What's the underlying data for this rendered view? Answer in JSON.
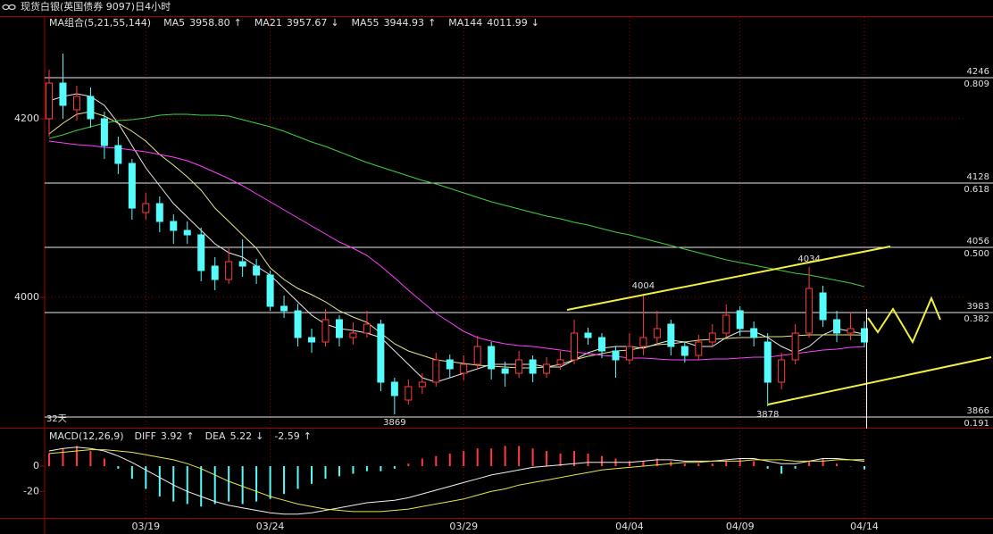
{
  "chart_data": [
    {
      "type": "candlestick",
      "title": "现货白银(英国债券 9097)日4小时",
      "indicator_label": "MA组合(5,21,55,144)",
      "period_label": "32天",
      "categories": [
        null,
        null,
        null,
        null,
        null,
        null,
        null,
        "03/19",
        null,
        null,
        null,
        null,
        null,
        null,
        null,
        null,
        "03/24",
        null,
        null,
        null,
        null,
        null,
        null,
        null,
        null,
        null,
        null,
        null,
        null,
        null,
        "03/29",
        null,
        null,
        null,
        null,
        null,
        null,
        null,
        null,
        null,
        null,
        null,
        "04/04",
        null,
        null,
        null,
        null,
        null,
        null,
        null,
        "04/09",
        null,
        null,
        null,
        null,
        null,
        null,
        null,
        null,
        "04/14"
      ],
      "open": [
        4200,
        4240,
        4210,
        4225,
        4200,
        4170,
        4150,
        4095,
        4105,
        4085,
        4075,
        4070,
        4035,
        4020,
        4040,
        4035,
        4025,
        3990,
        3985,
        3955,
        3950,
        3975,
        3955,
        3960,
        3970,
        3905,
        3885,
        3900,
        3905,
        3930,
        3915,
        3925,
        3945,
        3920,
        3915,
        3930,
        3915,
        3925,
        3930,
        3960,
        3955,
        3940,
        3930,
        3945,
        3955,
        3970,
        3945,
        3935,
        3950,
        3960,
        3985,
        3965,
        3950,
        3905,
        3930,
        3960,
        4005,
        3975,
        3960,
        3965
      ],
      "high": [
        4255,
        4273,
        4237,
        4235,
        4208,
        4180,
        4155,
        4117,
        4113,
        4093,
        4085,
        4078,
        4045,
        4055,
        4065,
        4043,
        4030,
        4002,
        3993,
        3965,
        3987,
        3980,
        3972,
        3985,
        3975,
        3910,
        3908,
        3915,
        3938,
        3936,
        3935,
        3957,
        3950,
        3928,
        3940,
        3935,
        3933,
        3940,
        3975,
        3966,
        3960,
        3945,
        3960,
        4004,
        3985,
        3975,
        3951,
        3958,
        3970,
        3992,
        3990,
        3973,
        3960,
        3938,
        3970,
        4034,
        4013,
        3985,
        3983,
        3973
      ],
      "low": [
        4180,
        4200,
        4198,
        4190,
        4155,
        4138,
        4087,
        4087,
        4073,
        4060,
        4060,
        4018,
        4008,
        4015,
        4023,
        4015,
        3985,
        3977,
        3945,
        3938,
        3945,
        3945,
        3947,
        3955,
        3895,
        3869,
        3880,
        3892,
        3900,
        3910,
        3907,
        3920,
        3908,
        3900,
        3910,
        3905,
        3910,
        3919,
        3925,
        3947,
        3932,
        3910,
        3925,
        3935,
        3947,
        3935,
        3927,
        3930,
        3945,
        3955,
        3957,
        3945,
        3878,
        3897,
        3925,
        3955,
        3967,
        3950,
        3952,
        3944
      ],
      "close": [
        4240,
        4215,
        4225,
        4200,
        4170,
        4150,
        4100,
        4105,
        4085,
        4075,
        4070,
        4030,
        4020,
        4040,
        4035,
        4025,
        3990,
        3985,
        3955,
        3950,
        3975,
        3955,
        3960,
        3970,
        3905,
        3890,
        3900,
        3905,
        3930,
        3920,
        3925,
        3945,
        3920,
        3915,
        3930,
        3915,
        3925,
        3930,
        3960,
        3955,
        3940,
        3930,
        3945,
        3955,
        3965,
        3945,
        3935,
        3950,
        3960,
        3980,
        3965,
        3955,
        3905,
        3930,
        3960,
        4010,
        3975,
        3960,
        3965,
        3950
      ],
      "up_color": "#ff3c3c",
      "down_color": "#54fcfc",
      "series": [
        {
          "name": "MA5",
          "color": "#e8e8e8",
          "last_label": "3958.80",
          "trend": "↑",
          "values": [
            4220,
            4225,
            4228,
            4225,
            4215,
            4195,
            4170,
            4145,
            4125,
            4105,
            4090,
            4075,
            4060,
            4050,
            4045,
            4035,
            4025,
            4010,
            3995,
            3980,
            3970,
            3965,
            3963,
            3960,
            3955,
            3940,
            3925,
            3910,
            3905,
            3910,
            3915,
            3920,
            3925,
            3925,
            3925,
            3925,
            3922,
            3922,
            3930,
            3938,
            3943,
            3945,
            3945,
            3943,
            3948,
            3952,
            3950,
            3945,
            3945,
            3955,
            3962,
            3962,
            3955,
            3945,
            3938,
            3945,
            3958,
            3965,
            3962,
            3958.8
          ]
        },
        {
          "name": "MA21",
          "color": "#e6e68c",
          "last_label": "3957.67",
          "trend": "↓",
          "values": [
            4183,
            4195,
            4205,
            4208,
            4203,
            4195,
            4186,
            4175,
            4160,
            4148,
            4135,
            4120,
            4100,
            4085,
            4070,
            4055,
            4033,
            4020,
            4010,
            4003,
            3995,
            3985,
            3978,
            3972,
            3960,
            3948,
            3940,
            3935,
            3930,
            3928,
            3926,
            3924,
            3923,
            3922,
            3921,
            3921,
            3922,
            3925,
            3930,
            3934,
            3937,
            3940,
            3941,
            3944,
            3947,
            3948,
            3950,
            3952,
            3953,
            3954,
            3955,
            3955,
            3956,
            3956,
            3957,
            3958,
            3958,
            3958,
            3958,
            3957.67
          ]
        },
        {
          "name": "MA55",
          "color": "#ff40ff",
          "last_label": "3944.93",
          "trend": "↑",
          "values": [
            4175,
            4173,
            4171,
            4170,
            4168,
            4167,
            4165,
            4163,
            4160,
            4157,
            4153,
            4147,
            4140,
            4133,
            4125,
            4116,
            4107,
            4098,
            4089,
            4080,
            4071,
            4062,
            4055,
            4047,
            4035,
            4022,
            4008,
            3995,
            3982,
            3972,
            3962,
            3955,
            3951,
            3948,
            3946,
            3945,
            3943,
            3941,
            3939,
            3937,
            3935,
            3934,
            3932,
            3932,
            3931,
            3930,
            3930,
            3930,
            3931,
            3931,
            3932,
            3933,
            3933,
            3935,
            3937,
            3939,
            3941,
            3942,
            3944,
            3944.93
          ]
        },
        {
          "name": "MA144",
          "color": "#40d040",
          "last_label": "4011.99",
          "trend": "↓",
          "values": [
            4178,
            4182,
            4187,
            4191,
            4195,
            4198,
            4199,
            4201,
            4204,
            4205,
            4205,
            4204,
            4204,
            4203,
            4199,
            4195,
            4191,
            4186,
            4180,
            4174,
            4169,
            4163,
            4157,
            4151,
            4146,
            4141,
            4136,
            4131,
            4127,
            4122,
            4117,
            4112,
            4107,
            4103,
            4099,
            4095,
            4091,
            4088,
            4084,
            4081,
            4077,
            4073,
            4070,
            4066,
            4062,
            4058,
            4054,
            4050,
            4046,
            4042,
            4039,
            4036,
            4033,
            4030,
            4027,
            4025,
            4022,
            4019,
            4016,
            4011.99
          ]
        }
      ],
      "levels": [
        {
          "value": 4246,
          "ratio": "0.809"
        },
        {
          "value": 4128,
          "ratio": "0.618"
        },
        {
          "value": 4056,
          "ratio": "0.500"
        },
        {
          "value": 3983,
          "ratio": "0.382"
        },
        {
          "value": 3866,
          "ratio": "0.191"
        }
      ],
      "high_labels": [
        4004,
        4034
      ],
      "low_labels": [
        3869,
        3878
      ],
      "ylim": [
        3855,
        4303
      ],
      "yticks": [
        4000,
        4200
      ],
      "grid": true
    },
    {
      "type": "macd",
      "label": "MACD(12,26,9)",
      "histogram": {
        "trend": "↑",
        "values": [
          10,
          14,
          16,
          12,
          6,
          -2,
          -10,
          -18,
          -24,
          -28,
          -30,
          -32,
          -30,
          -28,
          -30,
          -28,
          -26,
          -22,
          -18,
          -14,
          -10,
          -8,
          -6,
          -4,
          -4,
          -2,
          2,
          6,
          8,
          10,
          12,
          14,
          14,
          16,
          16,
          14,
          12,
          10,
          12,
          10,
          8,
          6,
          4,
          4,
          6,
          4,
          2,
          2,
          2,
          4,
          6,
          4,
          -2,
          -6,
          -2,
          4,
          6,
          2,
          0,
          -2.59
        ]
      },
      "series": [
        {
          "name": "DIFF",
          "color": "#f0f0f0",
          "trend": "↑",
          "values": [
            12,
            14,
            15,
            14,
            12,
            8,
            3,
            -3,
            -9,
            -15,
            -20,
            -24,
            -28,
            -31,
            -33,
            -35,
            -37,
            -38,
            -38,
            -37,
            -35,
            -33,
            -31,
            -29,
            -28,
            -27,
            -25,
            -22,
            -19,
            -16,
            -13,
            -10,
            -7,
            -5,
            -3,
            -1,
            0,
            1,
            2,
            3,
            3,
            3,
            3,
            4,
            5,
            5,
            4,
            4,
            4,
            5,
            6,
            6,
            4,
            2,
            2,
            4,
            6,
            6,
            5,
            3.92
          ]
        },
        {
          "name": "DEA",
          "color": "#e6e64c",
          "trend": "↓",
          "values": [
            10,
            11,
            12,
            13,
            13,
            12,
            11,
            9,
            7,
            5,
            2,
            -2,
            -7,
            -12,
            -16,
            -20,
            -24,
            -27,
            -30,
            -32,
            -34,
            -35,
            -36,
            -36,
            -36,
            -35,
            -34,
            -32,
            -30,
            -28,
            -26,
            -23,
            -20,
            -18,
            -15,
            -13,
            -11,
            -9,
            -7,
            -5,
            -3,
            -2,
            -1,
            0,
            1,
            2,
            3,
            3,
            4,
            4,
            4,
            5,
            5,
            5,
            4,
            4,
            4,
            5,
            5,
            5.22
          ]
        }
      ],
      "ylim": [
        -41,
        29
      ],
      "yticks": [
        0,
        -20
      ]
    }
  ]
}
